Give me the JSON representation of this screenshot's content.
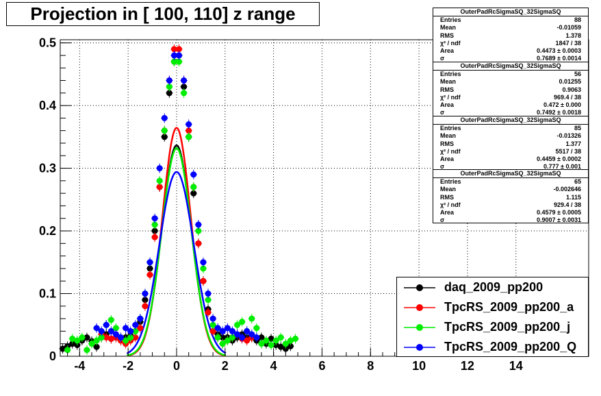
{
  "title": "Projection in [ 100, 110] z range",
  "stats": [
    {
      "name": "OuterPadRcSigmaSQ_32SigmaSQ",
      "rows": [
        [
          "Entries",
          "88"
        ],
        [
          "Mean",
          "-0.01059"
        ],
        [
          "RMS",
          "1.378"
        ],
        [
          "χ² / ndf",
          "1847 / 38"
        ],
        [
          "Area",
          "0.4473 ± 0.0003"
        ],
        [
          "σ",
          "0.7689 ± 0.0014"
        ]
      ]
    },
    {
      "name": "OuterPadRcSigmaSQ_32SigmaSQ",
      "rows": [
        [
          "Entries",
          "56"
        ],
        [
          "Mean",
          "0.01255"
        ],
        [
          "RMS",
          "0.9063"
        ],
        [
          "χ² / ndf",
          "969.4 / 38"
        ],
        [
          "Area",
          "0.472 ± 0.000"
        ],
        [
          "σ",
          "0.7492 ± 0.0018"
        ]
      ]
    },
    {
      "name": "OuterPadRcSigmaSQ_32SigmaSQ",
      "rows": [
        [
          "Entries",
          "85"
        ],
        [
          "Mean",
          "-0.01326"
        ],
        [
          "RMS",
          "1.377"
        ],
        [
          "χ² / ndf",
          "5517 / 38"
        ],
        [
          "Area",
          "0.4459 ± 0.0002"
        ],
        [
          "σ",
          "0.777 ± 0.001"
        ]
      ]
    },
    {
      "name": "OuterPadRcSigmaSQ_32SigmaSQ",
      "rows": [
        [
          "Entries",
          "65"
        ],
        [
          "Mean",
          "-0.002646"
        ],
        [
          "RMS",
          "1.115"
        ],
        [
          "χ² / ndf",
          "929.4 / 38"
        ],
        [
          "Area",
          "0.4579 ± 0.0005"
        ],
        [
          "σ",
          "0.9007 ± 0.0031"
        ]
      ]
    }
  ],
  "chart_data": {
    "type": "scatter",
    "xlim": [
      -4.8,
      17
    ],
    "ylim": [
      0,
      0.505
    ],
    "xticks": [
      -4,
      -2,
      0,
      2,
      4,
      6,
      8,
      10,
      12,
      14
    ],
    "yticks": [
      0,
      0.1,
      0.2,
      0.3,
      0.4,
      0.5
    ],
    "grid": true,
    "legend_position": "bottom-right",
    "series": [
      {
        "name": "daq_2009_pp200",
        "color": "#000000",
        "area": 0.4473,
        "sigma": 0.7689,
        "x": [
          -4.7,
          -4.5,
          -4.3,
          -4.1,
          -3.9,
          -3.7,
          -3.5,
          -3.3,
          -3.1,
          -2.9,
          -2.7,
          -2.5,
          -2.3,
          -2.1,
          -1.9,
          -1.7,
          -1.5,
          -1.3,
          -1.1,
          -0.9,
          -0.7,
          -0.5,
          -0.3,
          -0.1,
          0.1,
          0.3,
          0.5,
          0.7,
          0.9,
          1.1,
          1.3,
          1.5,
          1.7,
          1.9,
          2.1,
          2.3,
          2.5,
          2.7,
          2.9,
          3.1,
          3.3,
          3.5,
          3.7,
          3.9,
          4.1,
          4.3,
          4.5,
          4.7
        ],
        "y": [
          0.012,
          0.016,
          0.02,
          0.018,
          0.025,
          0.03,
          0.024,
          0.015,
          0.03,
          0.035,
          0.028,
          0.03,
          0.025,
          0.03,
          0.033,
          0.04,
          0.055,
          0.09,
          0.14,
          0.2,
          0.27,
          0.35,
          0.42,
          0.47,
          0.48,
          0.43,
          0.35,
          0.26,
          0.18,
          0.12,
          0.075,
          0.04,
          0.035,
          0.03,
          0.03,
          0.025,
          0.03,
          0.035,
          0.03,
          0.03,
          0.025,
          0.03,
          0.02,
          0.028,
          0.018,
          0.015,
          0.012,
          0.016
        ]
      },
      {
        "name": "TpcRS_2009_pp200_a",
        "color": "#ff0000",
        "area": 0.472,
        "sigma": 0.7492,
        "x": [
          -3.1,
          -2.9,
          -2.7,
          -2.5,
          -2.3,
          -2.1,
          -1.9,
          -1.7,
          -1.5,
          -1.3,
          -1.1,
          -0.9,
          -0.7,
          -0.5,
          -0.3,
          -0.1,
          0.1,
          0.3,
          0.5,
          0.7,
          0.9,
          1.1,
          1.3,
          1.5,
          1.7,
          1.9,
          2.1,
          2.3,
          2.5,
          2.7,
          2.9,
          3.1
        ],
        "y": [
          0.035,
          0.03,
          0.028,
          0.03,
          0.025,
          0.02,
          0.025,
          0.03,
          0.045,
          0.08,
          0.13,
          0.19,
          0.27,
          0.36,
          0.44,
          0.49,
          0.49,
          0.44,
          0.36,
          0.27,
          0.18,
          0.12,
          0.07,
          0.04,
          0.03,
          0.02,
          0.025,
          0.03,
          0.035,
          0.028,
          0.025,
          0.03
        ]
      },
      {
        "name": "TpcRS_2009_pp200_j",
        "color": "#00ee00",
        "area": 0.4459,
        "sigma": 0.777,
        "x": [
          -4.5,
          -4.3,
          -4.1,
          -3.9,
          -3.7,
          -3.5,
          -3.3,
          -3.1,
          -2.9,
          -2.7,
          -2.5,
          -2.3,
          -2.1,
          -1.9,
          -1.7,
          -1.5,
          -1.3,
          -1.1,
          -0.9,
          -0.7,
          -0.5,
          -0.3,
          -0.1,
          0.1,
          0.3,
          0.5,
          0.7,
          0.9,
          1.1,
          1.3,
          1.5,
          1.7,
          1.9,
          2.1,
          2.3,
          2.5,
          2.7,
          2.9,
          3.1,
          3.3,
          3.5,
          3.7,
          3.9,
          4.1,
          4.3,
          4.5,
          4.7,
          4.9
        ],
        "y": [
          0.01,
          0.028,
          0.025,
          0.03,
          0.01,
          0.02,
          0.025,
          0.03,
          0.05,
          0.058,
          0.045,
          0.03,
          0.025,
          0.03,
          0.04,
          0.06,
          0.1,
          0.15,
          0.21,
          0.28,
          0.36,
          0.43,
          0.47,
          0.47,
          0.42,
          0.35,
          0.27,
          0.2,
          0.14,
          0.09,
          0.05,
          0.03,
          0.02,
          0.025,
          0.03,
          0.05,
          0.055,
          0.04,
          0.06,
          0.045,
          0.02,
          0.025,
          0.018,
          0.025,
          0.03,
          0.02,
          0.025,
          0.028
        ]
      },
      {
        "name": "TpcRS_2009_pp200_Q",
        "color": "#0000ff",
        "area": 0.4579,
        "sigma": 0.9007,
        "x": [
          -3.3,
          -3.1,
          -2.9,
          -2.7,
          -2.5,
          -2.3,
          -2.1,
          -1.9,
          -1.7,
          -1.5,
          -1.3,
          -1.1,
          -0.9,
          -0.7,
          -0.5,
          -0.3,
          -0.1,
          0.1,
          0.3,
          0.5,
          0.7,
          0.9,
          1.1,
          1.3,
          1.5,
          1.7,
          1.9,
          2.1,
          2.3,
          2.5,
          2.7,
          2.9,
          3.1,
          3.3
        ],
        "y": [
          0.045,
          0.04,
          0.05,
          0.04,
          0.035,
          0.03,
          0.045,
          0.04,
          0.05,
          0.06,
          0.1,
          0.15,
          0.22,
          0.3,
          0.38,
          0.44,
          0.48,
          0.48,
          0.44,
          0.37,
          0.29,
          0.21,
          0.15,
          0.1,
          0.06,
          0.045,
          0.04,
          0.045,
          0.04,
          0.035,
          0.03,
          0.04,
          0.035,
          0.03
        ]
      }
    ]
  }
}
